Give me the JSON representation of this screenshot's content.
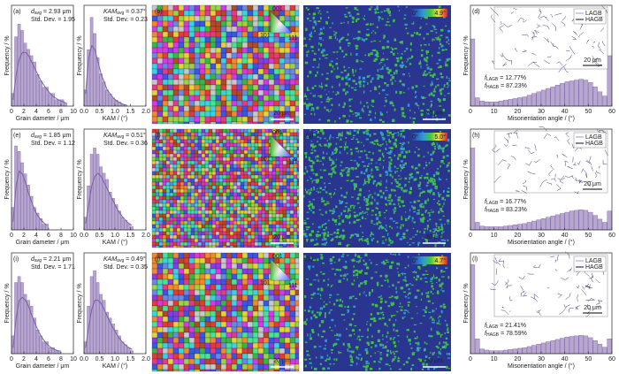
{
  "chart_data": [
    {
      "type": "histogram",
      "label": "(a)",
      "xlabel": "Grain dameter / μm",
      "ylabel": "Frequency / %",
      "color": "#7b5ea7",
      "bins": [
        0,
        0.5,
        1,
        1.5,
        2,
        2.5,
        3,
        3.5,
        4,
        4.5,
        5,
        5.5,
        6,
        6.5,
        7,
        7.5,
        8,
        8.5,
        9
      ],
      "values": [
        2,
        11,
        13,
        12,
        10,
        9,
        8,
        7,
        5,
        4,
        3,
        3,
        2,
        2,
        1,
        1,
        1,
        0.5
      ],
      "fit": {
        "x": [
          0.25,
          0.75,
          1.25,
          1.75,
          2.25,
          2.75,
          3.25,
          3.75,
          4.25,
          4.75,
          5.25,
          5.75,
          6.25,
          6.75,
          7.25,
          7.75,
          8.25,
          8.75
        ],
        "values": [
          1,
          5,
          7.5,
          8.5,
          8.5,
          8,
          7,
          6,
          5,
          4,
          3.3,
          2.6,
          2,
          1.5,
          1.2,
          0.9,
          0.7,
          0.5
        ]
      },
      "xlim": [
        0,
        10
      ],
      "xticks": [
        0,
        2,
        4,
        6,
        8,
        10
      ],
      "ylim": [
        0,
        16
      ],
      "annotations": [
        {
          "symbol": "d",
          "sub": "avg",
          "text": " = 2.93 μm"
        },
        {
          "text": "Std. Dev. = 1.95"
        }
      ]
    },
    {
      "type": "histogram",
      "xlabel": "KAM / (°)",
      "ylabel": "Frequency / %",
      "color": "#7b5ea7",
      "bins": [
        0,
        0.1,
        0.2,
        0.3,
        0.4,
        0.5,
        0.6,
        0.7,
        0.8,
        0.9,
        1.0,
        1.1,
        1.2,
        1.3,
        1.4
      ],
      "values": [
        4,
        14,
        22,
        18,
        12,
        8,
        6,
        4,
        3,
        2,
        1.5,
        1,
        0.5,
        0.3
      ],
      "fit": {
        "x": [
          0.05,
          0.15,
          0.25,
          0.35,
          0.45,
          0.55,
          0.65,
          0.75,
          0.85,
          0.95,
          1.05,
          1.15,
          1.25,
          1.35
        ],
        "values": [
          3,
          12,
          15,
          14,
          11,
          8,
          6,
          4,
          3,
          2,
          1.3,
          0.9,
          0.5,
          0.3
        ]
      },
      "xlim": [
        0,
        2
      ],
      "xticks": [
        {
          "value": 0,
          "label": "0.0"
        },
        {
          "value": 0.5,
          "label": "0.5"
        },
        {
          "value": 1,
          "label": "1.0"
        },
        {
          "value": 1.5,
          "label": "1.5"
        },
        {
          "value": 2,
          "label": "2.0"
        }
      ],
      "ylim": [
        0,
        25
      ],
      "annotations": [
        {
          "symbol": "KAM",
          "sub": "avg",
          "text": " = 0.37°"
        },
        {
          "text": "Std. Dev. = 0.23"
        }
      ]
    },
    {
      "type": "histogram",
      "label": "(d)",
      "xlabel": "Misorientation angle / (°)",
      "ylabel": "Frequency / %",
      "color": "#7b5ea7",
      "bins": [
        0,
        2,
        4,
        6,
        8,
        10,
        12,
        14,
        16,
        18,
        20,
        22,
        24,
        26,
        28,
        30,
        32,
        34,
        36,
        38,
        40,
        42,
        44,
        46,
        48,
        50,
        52,
        54,
        56,
        58,
        60
      ],
      "values": [
        8,
        1,
        0.6,
        0.5,
        0.5,
        0.5,
        0.6,
        0.7,
        0.8,
        0.9,
        1.0,
        1.1,
        1.3,
        1.5,
        1.7,
        1.9,
        2.1,
        2.3,
        2.5,
        2.7,
        2.9,
        3.0,
        3.1,
        3.2,
        3.1,
        2.8,
        2.3,
        1.7,
        1.2,
        6
      ],
      "xlim": [
        0,
        60
      ],
      "xticks": [
        0,
        10,
        20,
        30,
        40,
        50,
        60
      ],
      "ylim": [
        0,
        12
      ],
      "inset_legend": [
        "LAGB",
        "HAGB"
      ],
      "inset_scale": "20 μm",
      "annotations": [
        {
          "symbol": "f",
          "sub": "LAGB",
          "text": " = 12.77%"
        },
        {
          "symbol": "f",
          "sub": "HAGB",
          "text": " = 87.23%"
        }
      ]
    },
    {
      "type": "histogram",
      "label": "(e)",
      "xlabel": "Grain dameter / μm",
      "ylabel": "Frequency / %",
      "color": "#7b5ea7",
      "bins": [
        0,
        0.5,
        1,
        1.5,
        2,
        2.5,
        3,
        3.5,
        4,
        4.5,
        5,
        5.5,
        6
      ],
      "values": [
        4,
        15,
        14,
        12,
        10,
        8,
        6,
        4,
        3,
        2,
        1,
        1
      ],
      "fit": {
        "x": [
          0.25,
          0.75,
          1.25,
          1.75,
          2.25,
          2.75,
          3.25,
          3.75,
          4.25,
          4.75,
          5.25,
          5.75
        ],
        "values": [
          1.5,
          8,
          10.5,
          10,
          8.5,
          6.5,
          5,
          3.5,
          2.5,
          1.8,
          1.2,
          0.8
        ]
      },
      "xlim": [
        0,
        10
      ],
      "xticks": [
        0,
        2,
        4,
        6,
        8,
        10
      ],
      "ylim": [
        0,
        18
      ],
      "annotations": [
        {
          "symbol": "d",
          "sub": "avg",
          "text": " = 1.85 μm"
        },
        {
          "text": "Std. Dev. = 1.12"
        }
      ]
    },
    {
      "type": "histogram",
      "xlabel": "KAM / (°)",
      "ylabel": "Frequency / %",
      "color": "#7b5ea7",
      "bins": [
        0,
        0.1,
        0.2,
        0.3,
        0.4,
        0.5,
        0.6,
        0.7,
        0.8,
        0.9,
        1.0,
        1.1,
        1.2,
        1.3,
        1.4,
        1.5,
        1.6
      ],
      "values": [
        2,
        7,
        12,
        13,
        12,
        10,
        9,
        8,
        6,
        5,
        4,
        3,
        2,
        1.5,
        1,
        0.5
      ],
      "fit": {
        "x": [
          0.05,
          0.15,
          0.25,
          0.35,
          0.45,
          0.55,
          0.65,
          0.75,
          0.85,
          0.95,
          1.05,
          1.15,
          1.25,
          1.35,
          1.45,
          1.55
        ],
        "values": [
          1,
          4,
          7,
          8.5,
          9,
          8.5,
          7.5,
          6.5,
          5.5,
          4.5,
          3.5,
          2.7,
          2,
          1.5,
          1,
          0.7
        ]
      },
      "xlim": [
        0,
        2
      ],
      "xticks": [
        {
          "value": 0,
          "label": "0.0"
        },
        {
          "value": 0.5,
          "label": "0.5"
        },
        {
          "value": 1,
          "label": "1.0"
        },
        {
          "value": 1.5,
          "label": "1.5"
        },
        {
          "value": 2,
          "label": "2.0"
        }
      ],
      "ylim": [
        0,
        16
      ],
      "annotations": [
        {
          "symbol": "KAM",
          "sub": "avg",
          "text": " = 0.51°"
        },
        {
          "text": "Std. Dev. = 0.36"
        }
      ]
    },
    {
      "type": "histogram",
      "label": "(h)",
      "xlabel": "Misorientation angle / (°)",
      "ylabel": "Frequency / %",
      "color": "#7b5ea7",
      "bins": [
        0,
        2,
        4,
        6,
        8,
        10,
        12,
        14,
        16,
        18,
        20,
        22,
        24,
        26,
        28,
        30,
        32,
        34,
        36,
        38,
        40,
        42,
        44,
        46,
        48,
        50,
        52,
        54,
        56,
        58,
        60
      ],
      "values": [
        13,
        1.2,
        0.6,
        0.5,
        0.5,
        0.5,
        0.5,
        0.6,
        0.7,
        0.8,
        0.9,
        1.0,
        1.2,
        1.4,
        1.6,
        1.8,
        2.0,
        2.2,
        2.4,
        2.6,
        2.8,
        3.0,
        3.1,
        3.2,
        3.1,
        2.8,
        2.3,
        1.7,
        1.2,
        3
      ],
      "xlim": [
        0,
        60
      ],
      "xticks": [
        0,
        10,
        20,
        30,
        40,
        50,
        60
      ],
      "ylim": [
        0,
        16
      ],
      "inset_legend": [
        "LAGB",
        "HAGB"
      ],
      "inset_scale": "20 μm",
      "annotations": [
        {
          "symbol": "f",
          "sub": "LAGB",
          "text": " = 16.77%"
        },
        {
          "symbol": "f",
          "sub": "HAGB",
          "text": " = 83.23%"
        }
      ]
    },
    {
      "type": "histogram",
      "label": "(i)",
      "xlabel": "Grain dameter / μm",
      "ylabel": "Frequency / %",
      "color": "#7b5ea7",
      "bins": [
        0,
        0.5,
        1,
        1.5,
        2,
        2.5,
        3,
        3.5,
        4,
        4.5,
        5,
        5.5,
        6,
        6.5,
        7,
        7.5,
        8
      ],
      "values": [
        3,
        12,
        13,
        12,
        10,
        9,
        8,
        6,
        4,
        3,
        2,
        2,
        1,
        1,
        0.5,
        0.5
      ],
      "fit": {
        "x": [
          0.25,
          0.75,
          1.25,
          1.75,
          2.25,
          2.75,
          3.25,
          3.75,
          4.25,
          4.75,
          5.25,
          5.75,
          6.25,
          6.75,
          7.25,
          7.75
        ],
        "values": [
          1,
          6,
          9,
          9.5,
          9,
          8,
          6.5,
          5.2,
          4,
          3,
          2.2,
          1.6,
          1.1,
          0.8,
          0.6,
          0.4
        ]
      },
      "xlim": [
        0,
        10
      ],
      "xticks": [
        0,
        2,
        4,
        6,
        8,
        10
      ],
      "ylim": [
        0,
        17
      ],
      "annotations": [
        {
          "symbol": "d",
          "sub": "avg",
          "text": " = 2.21 μm"
        },
        {
          "text": "Std. Dev. = 1.71"
        }
      ]
    },
    {
      "type": "histogram",
      "xlabel": "KAM / (°)",
      "ylabel": "Frequency / %",
      "color": "#7b5ea7",
      "bins": [
        0,
        0.1,
        0.2,
        0.3,
        0.4,
        0.5,
        0.6,
        0.7,
        0.8,
        0.9,
        1.0,
        1.1,
        1.2,
        1.3,
        1.4,
        1.5,
        1.6
      ],
      "values": [
        2,
        8,
        13,
        14,
        12,
        10,
        9,
        7,
        6,
        5,
        4,
        3,
        2,
        1.5,
        1,
        0.5
      ],
      "fit": {
        "x": [
          0.05,
          0.15,
          0.25,
          0.35,
          0.45,
          0.55,
          0.65,
          0.75,
          0.85,
          0.95,
          1.05,
          1.15,
          1.25,
          1.35,
          1.45,
          1.55
        ],
        "values": [
          1,
          4.5,
          7.5,
          9,
          9,
          8.5,
          7.5,
          6.3,
          5.2,
          4.2,
          3.3,
          2.5,
          1.9,
          1.4,
          1,
          0.7
        ]
      },
      "xlim": [
        0,
        2
      ],
      "xticks": [
        {
          "value": 0,
          "label": "0.0"
        },
        {
          "value": 0.5,
          "label": "0.5"
        },
        {
          "value": 1,
          "label": "1.0"
        },
        {
          "value": 1.5,
          "label": "1.5"
        },
        {
          "value": 2,
          "label": "2.0"
        }
      ],
      "ylim": [
        0,
        17
      ],
      "annotations": [
        {
          "symbol": "KAM",
          "sub": "avg",
          "text": " = 0.49°"
        },
        {
          "text": "Std. Dev. = 0.35"
        }
      ]
    },
    {
      "type": "histogram",
      "label": "(l)",
      "xlabel": "Misorientation angle / (°)",
      "ylabel": "Frequency / %",
      "color": "#7b5ea7",
      "bins": [
        0,
        2,
        4,
        6,
        8,
        10,
        12,
        14,
        16,
        18,
        20,
        22,
        24,
        26,
        28,
        30,
        32,
        34,
        36,
        38,
        40,
        42,
        44,
        46,
        48,
        50,
        52,
        54,
        56,
        58,
        60
      ],
      "values": [
        15,
        2.5,
        0.8,
        0.6,
        0.5,
        0.5,
        0.5,
        0.6,
        0.7,
        0.8,
        0.9,
        1.0,
        1.2,
        1.4,
        1.6,
        1.8,
        2.0,
        2.2,
        2.4,
        2.6,
        2.8,
        2.9,
        3.0,
        3.1,
        3.0,
        2.7,
        2.2,
        1.6,
        1.1,
        2.5
      ],
      "xlim": [
        0,
        60
      ],
      "xticks": [
        0,
        10,
        20,
        30,
        40,
        50,
        60
      ],
      "ylim": [
        0,
        17
      ],
      "inset_legend": [
        "LAGB",
        "HAGB"
      ],
      "inset_scale": "20 μm",
      "annotations": [
        {
          "symbol": "f",
          "sub": "LAGB",
          "text": " = 21.41%"
        },
        {
          "symbol": "f",
          "sub": "HAGB",
          "text": " = 78.59%"
        }
      ]
    }
  ],
  "maps": [
    {
      "kind": "ipf",
      "label": "(b)",
      "scale_bar": "20 μm",
      "ipf_legend": [
        "001",
        "101",
        "111"
      ]
    },
    {
      "kind": "kam",
      "label": "(c)",
      "scale_bar": "20 μm",
      "range_labels": [
        "0°",
        "4.9°"
      ]
    },
    {
      "kind": "ipf",
      "label": "(f)",
      "scale_bar": "20 μm",
      "ipf_legend": [
        "001",
        "101",
        "111"
      ]
    },
    {
      "kind": "kam",
      "label": "(g)",
      "scale_bar": "20 μm",
      "range_labels": [
        "0°",
        "5.0°"
      ]
    },
    {
      "kind": "ipf",
      "label": "(j)",
      "scale_bar": "20 μm",
      "ipf_legend": [
        "001",
        "101",
        "111"
      ]
    },
    {
      "kind": "kam",
      "label": "(k)",
      "scale_bar": "20 μm",
      "range_labels": [
        "0°",
        "4.7°"
      ]
    }
  ]
}
